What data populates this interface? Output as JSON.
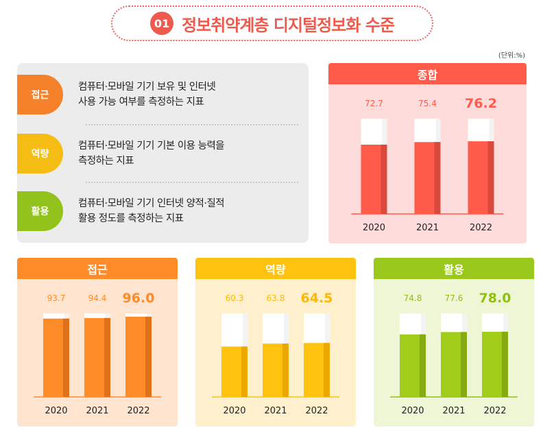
{
  "header": {
    "number": "01",
    "title": "정보취약계층 디지털정보화 수준",
    "unit": "(단위:%)",
    "accent": "#ef5a4e"
  },
  "definitions": [
    {
      "badge": "접근",
      "color": "#f5822a",
      "lines": [
        "컴퓨터·모바일 기기 보유 및 인터넷",
        "사용 가능 여부를 측정하는 지표"
      ]
    },
    {
      "badge": "역량",
      "color": "#f5bd14",
      "lines": [
        "컴퓨터·모바일 기기 기본 이용 능력을",
        "측정하는 지표"
      ]
    },
    {
      "badge": "활용",
      "color": "#92c21c",
      "lines": [
        "컴퓨터·모바일 기기 인터넷 양적·질적",
        "활용 정도를 측정하는 지표"
      ]
    }
  ],
  "chart_data": [
    {
      "type": "bar",
      "title": "종합",
      "categories": [
        "2020",
        "2021",
        "2022"
      ],
      "values": [
        72.7,
        75.4,
        76.2
      ],
      "value_labels": [
        "72.7",
        "75.4",
        "76.2"
      ],
      "ylim": [
        0,
        100
      ],
      "colors": {
        "head": "#ff5a4a",
        "bar": "#ff5a4a",
        "barSide": "#d94a3c",
        "label": "#ff5a4a",
        "axis": "#ff5a4a",
        "bg": "#ffdcdc"
      }
    },
    {
      "type": "bar",
      "title": "접근",
      "categories": [
        "2020",
        "2021",
        "2022"
      ],
      "values": [
        93.7,
        94.4,
        96.0
      ],
      "value_labels": [
        "93.7",
        "94.4",
        "96.0"
      ],
      "ylim": [
        0,
        100
      ],
      "colors": {
        "head": "#ff8a28",
        "bar": "#ff8a28",
        "barSide": "#e0701a",
        "label": "#ff8a28",
        "axis": "#ff8a28",
        "bg": "#ffe4cf"
      }
    },
    {
      "type": "bar",
      "title": "역량",
      "categories": [
        "2020",
        "2021",
        "2022"
      ],
      "values": [
        60.3,
        63.8,
        64.5
      ],
      "value_labels": [
        "60.3",
        "63.8",
        "64.5"
      ],
      "ylim": [
        0,
        100
      ],
      "colors": {
        "head": "#ffc20e",
        "bar": "#ffc20e",
        "barSide": "#eaa800",
        "label": "#ffb800",
        "axis": "#ffc20e",
        "bg": "#fff0cd"
      }
    },
    {
      "type": "bar",
      "title": "활용",
      "categories": [
        "2020",
        "2021",
        "2022"
      ],
      "values": [
        74.8,
        77.6,
        78.0
      ],
      "value_labels": [
        "74.8",
        "77.6",
        "78.0"
      ],
      "ylim": [
        0,
        100
      ],
      "colors": {
        "head": "#9ac81c",
        "bar": "#a2cc1a",
        "barSide": "#85ab10",
        "label": "#8fbf10",
        "axis": "#8fbf10",
        "bg": "#eef6d6"
      }
    }
  ]
}
